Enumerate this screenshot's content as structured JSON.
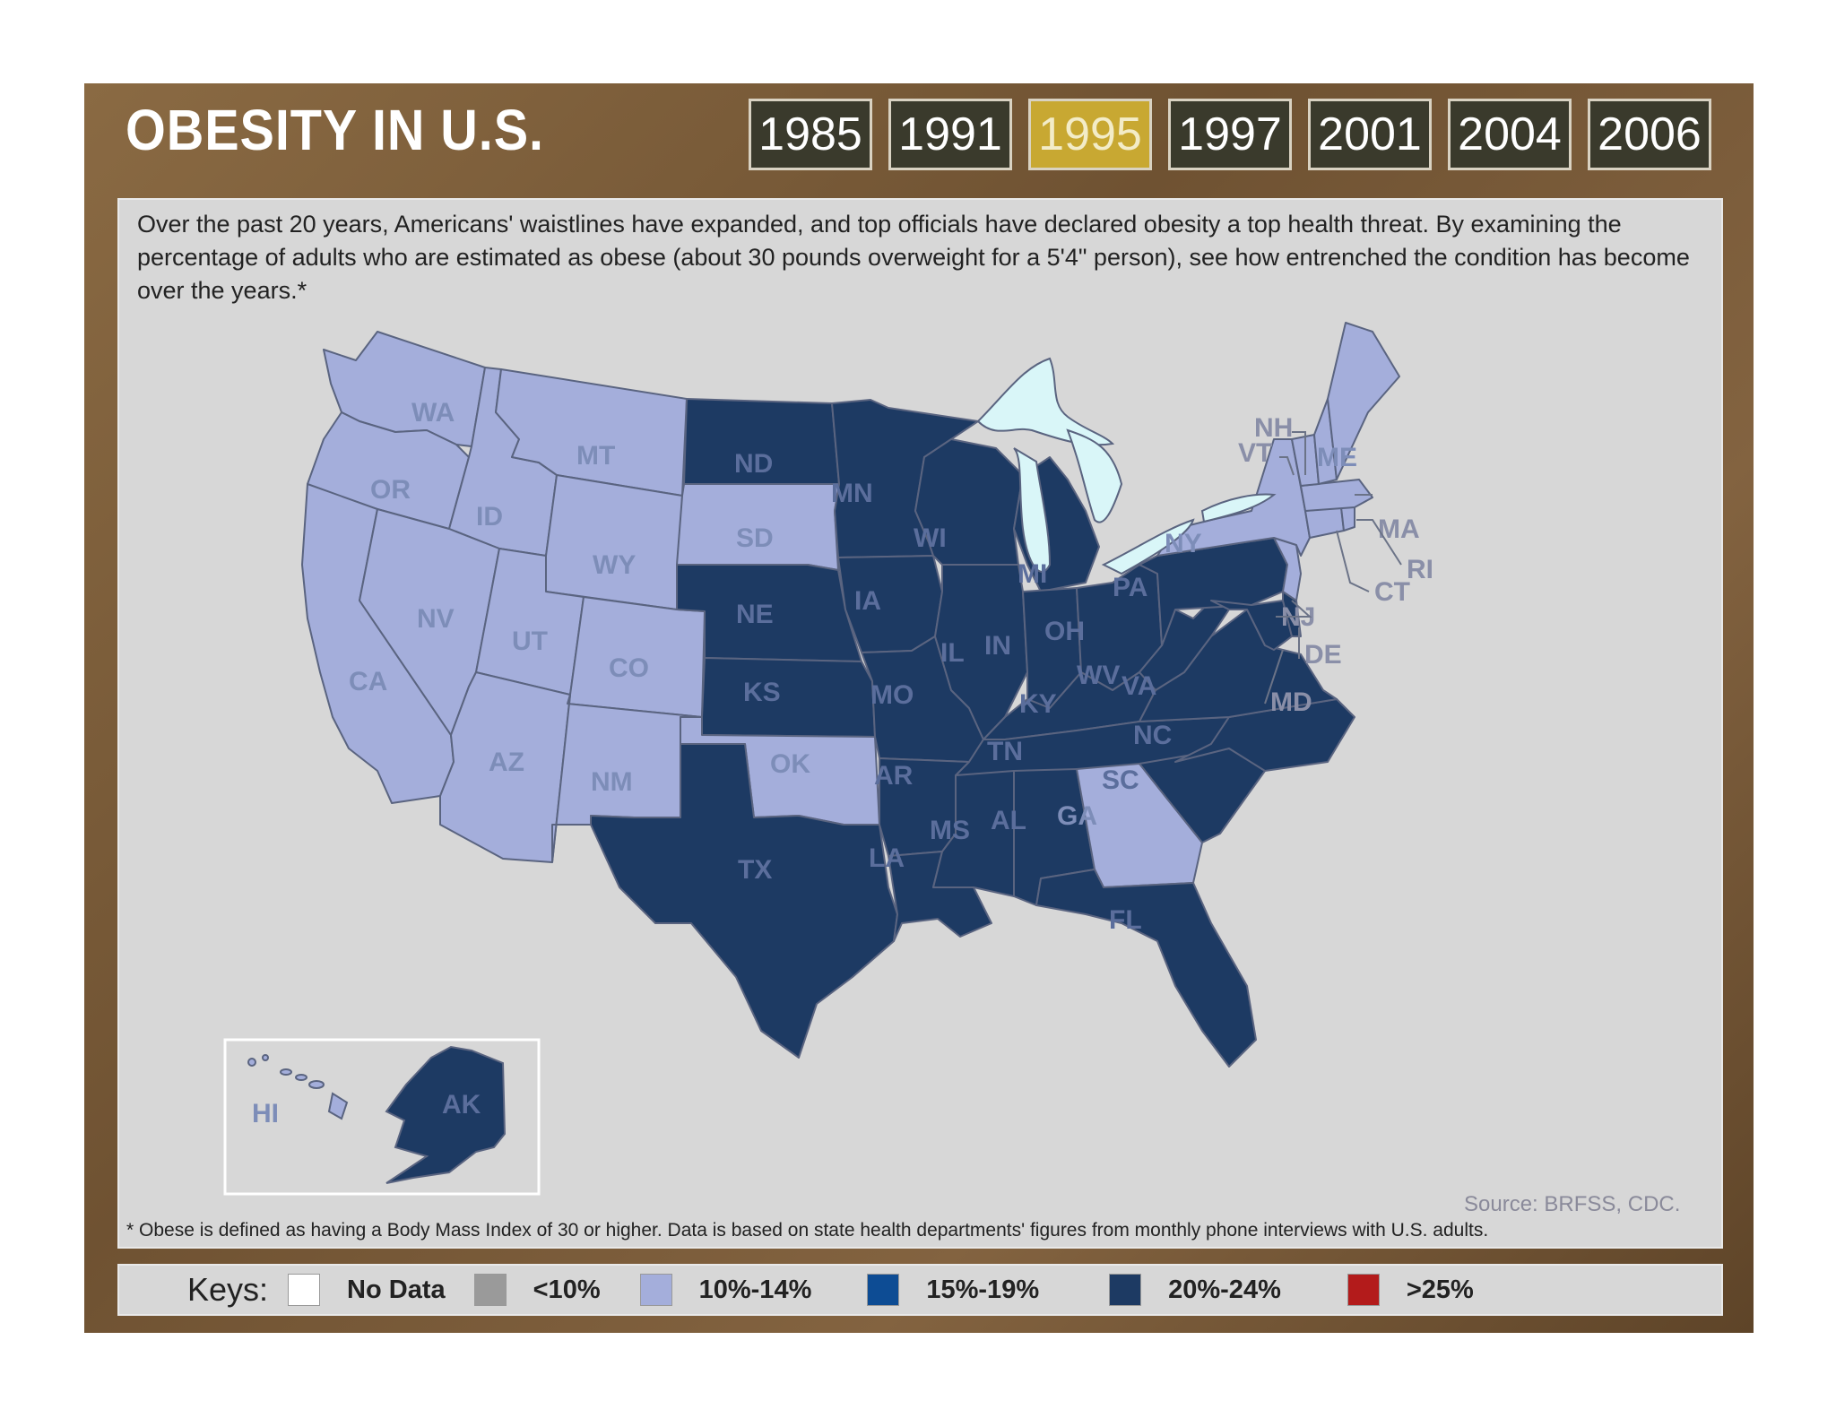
{
  "title": "OBESITY IN U.S.",
  "years": [
    "1985",
    "1991",
    "1995",
    "1997",
    "2001",
    "2004",
    "2006"
  ],
  "selected_year": "1995",
  "intro": "Over the past 20 years, Americans' waistlines have expanded, and top officials have declared obesity a top health threat. By examining the percentage of adults who are estimated as obese (about 30 pounds overweight for a 5'4\" person), see how entrenched the condition has become over the years.*",
  "source": "Source: BRFSS, CDC.",
  "footnote": "* Obese is defined as having a Body Mass Index of 30 or higher. Data is based on state health departments' figures from monthly phone interviews with U.S. adults.",
  "keys": {
    "title": "Keys:",
    "items": [
      {
        "label": "No Data",
        "color": "#ffffff"
      },
      {
        "label": "<10%",
        "color": "#9a9a9a"
      },
      {
        "label": "10%-14%",
        "color": "#a4aedb"
      },
      {
        "label": "15%-19%",
        "color": "#0d4c94"
      },
      {
        "label": "20%-24%",
        "color": "#1d3a63"
      },
      {
        "label": ">25%",
        "color": "#b31b1b"
      }
    ]
  },
  "colors": {
    "light": "#a4aedb",
    "dark": "#1d3a63",
    "lakes": "#d9f6f8",
    "border": "#5a6480"
  },
  "states": [
    {
      "abbr": "WA",
      "category": "10%-14%"
    },
    {
      "abbr": "OR",
      "category": "10%-14%"
    },
    {
      "abbr": "CA",
      "category": "10%-14%"
    },
    {
      "abbr": "ID",
      "category": "10%-14%"
    },
    {
      "abbr": "NV",
      "category": "10%-14%"
    },
    {
      "abbr": "MT",
      "category": "10%-14%"
    },
    {
      "abbr": "WY",
      "category": "10%-14%"
    },
    {
      "abbr": "UT",
      "category": "10%-14%"
    },
    {
      "abbr": "AZ",
      "category": "10%-14%"
    },
    {
      "abbr": "CO",
      "category": "10%-14%"
    },
    {
      "abbr": "NM",
      "category": "10%-14%"
    },
    {
      "abbr": "ND",
      "category": "20%-24%"
    },
    {
      "abbr": "SD",
      "category": "10%-14%"
    },
    {
      "abbr": "NE",
      "category": "20%-24%"
    },
    {
      "abbr": "KS",
      "category": "20%-24%"
    },
    {
      "abbr": "OK",
      "category": "10%-14%"
    },
    {
      "abbr": "TX",
      "category": "20%-24%"
    },
    {
      "abbr": "MN",
      "category": "20%-24%"
    },
    {
      "abbr": "IA",
      "category": "20%-24%"
    },
    {
      "abbr": "MO",
      "category": "20%-24%"
    },
    {
      "abbr": "AR",
      "category": "20%-24%"
    },
    {
      "abbr": "LA",
      "category": "20%-24%"
    },
    {
      "abbr": "WI",
      "category": "20%-24%"
    },
    {
      "abbr": "IL",
      "category": "20%-24%"
    },
    {
      "abbr": "MI",
      "category": "20%-24%"
    },
    {
      "abbr": "IN",
      "category": "20%-24%"
    },
    {
      "abbr": "OH",
      "category": "20%-24%"
    },
    {
      "abbr": "KY",
      "category": "20%-24%"
    },
    {
      "abbr": "TN",
      "category": "20%-24%"
    },
    {
      "abbr": "MS",
      "category": "20%-24%"
    },
    {
      "abbr": "AL",
      "category": "20%-24%"
    },
    {
      "abbr": "GA",
      "category": "10%-14%"
    },
    {
      "abbr": "FL",
      "category": "20%-24%"
    },
    {
      "abbr": "SC",
      "category": "20%-24%"
    },
    {
      "abbr": "NC",
      "category": "20%-24%"
    },
    {
      "abbr": "VA",
      "category": "20%-24%"
    },
    {
      "abbr": "WV",
      "category": "20%-24%"
    },
    {
      "abbr": "PA",
      "category": "20%-24%"
    },
    {
      "abbr": "NY",
      "category": "10%-14%"
    },
    {
      "abbr": "NJ",
      "category": "10%-14%"
    },
    {
      "abbr": "DE",
      "category": "20%-24%"
    },
    {
      "abbr": "MD",
      "category": "20%-24%"
    },
    {
      "abbr": "CT",
      "category": "10%-14%"
    },
    {
      "abbr": "RI",
      "category": "10%-14%"
    },
    {
      "abbr": "MA",
      "category": "10%-14%"
    },
    {
      "abbr": "VT",
      "category": "10%-14%"
    },
    {
      "abbr": "NH",
      "category": "10%-14%"
    },
    {
      "abbr": "ME",
      "category": "10%-14%"
    },
    {
      "abbr": "HI",
      "category": "10%-14%"
    },
    {
      "abbr": "AK",
      "category": "20%-24%"
    }
  ]
}
